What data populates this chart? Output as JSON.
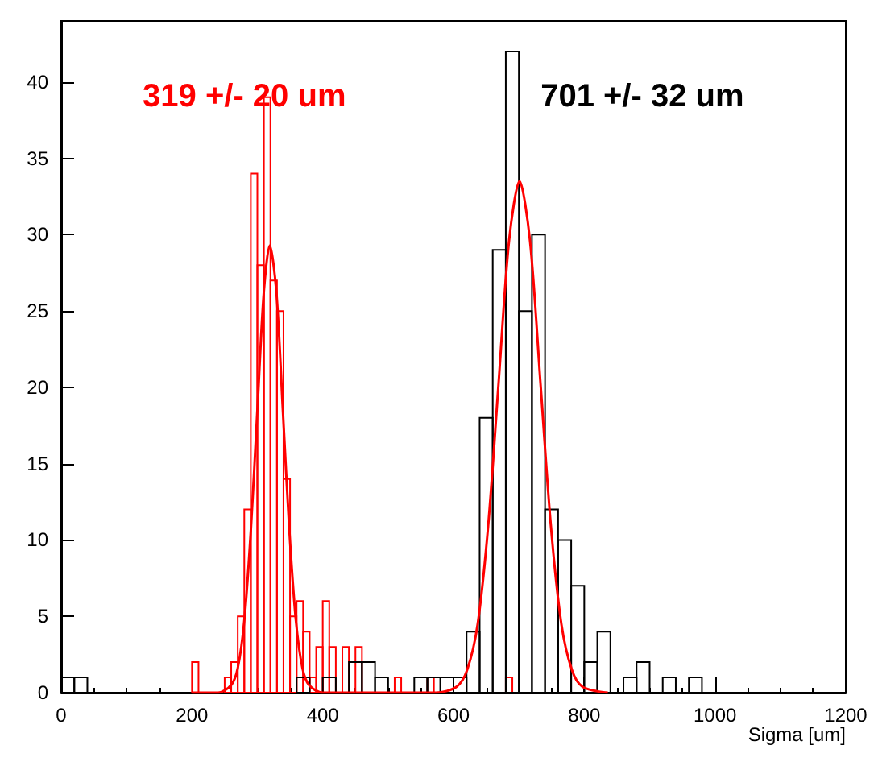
{
  "chart_data": {
    "type": "histogram",
    "xlabel": "Sigma [um]",
    "annotations": [
      "319 +/- 20 um",
      "701 +/- 32 um"
    ],
    "xlim": [
      0,
      1200
    ],
    "xticks": [
      0,
      200,
      400,
      600,
      800,
      1000,
      1200
    ],
    "ylim": [
      0,
      44
    ],
    "yticks": [
      0,
      5,
      10,
      15,
      20,
      25,
      30,
      35,
      40
    ],
    "grid": false,
    "series": [
      {
        "color": "#ff0000",
        "bins": [
          200,
          210,
          220,
          230,
          240,
          250,
          260,
          270,
          280,
          290,
          300,
          310,
          320,
          330,
          340,
          350,
          360,
          370,
          380,
          390,
          400,
          410,
          420,
          430,
          440,
          450,
          460,
          470,
          480,
          490,
          500,
          510,
          520,
          530,
          540,
          550,
          560,
          570,
          580,
          590,
          600,
          610,
          620,
          630,
          640,
          650,
          660,
          670,
          680,
          690,
          700
        ],
        "values": [
          2,
          0,
          0,
          0,
          0,
          1,
          2,
          5,
          12,
          34,
          28,
          39,
          27,
          25,
          14,
          5,
          6,
          4,
          1,
          3,
          6,
          3,
          0,
          3,
          0,
          3,
          0,
          0,
          0,
          0,
          0,
          1,
          0,
          0,
          0,
          0,
          1,
          0,
          0,
          0,
          0,
          0,
          0,
          0,
          0,
          0,
          0,
          0,
          1,
          0
        ]
      },
      {
        "color": "#000000",
        "bins": [
          0,
          20,
          40,
          60,
          80,
          100,
          120,
          140,
          160,
          180,
          200,
          220,
          240,
          260,
          280,
          300,
          320,
          340,
          360,
          380,
          400,
          420,
          440,
          460,
          480,
          500,
          520,
          540,
          560,
          580,
          600,
          620,
          640,
          660,
          680,
          700,
          720,
          740,
          760,
          780,
          800,
          820,
          840,
          860,
          880,
          900,
          920,
          940,
          960,
          980,
          1000
        ],
        "values": [
          1,
          1,
          0,
          0,
          0,
          0,
          0,
          0,
          0,
          0,
          0,
          0,
          0,
          0,
          0,
          0,
          0,
          0,
          1,
          0,
          1,
          0,
          2,
          2,
          1,
          0,
          0,
          1,
          1,
          1,
          1,
          4,
          18,
          29,
          42,
          25,
          30,
          12,
          10,
          7,
          2,
          4,
          0,
          1,
          2,
          0,
          1,
          0,
          1,
          0
        ]
      },
      {
        "type": "line",
        "color": "#ff0000",
        "x": [
          200,
          240,
          260,
          270,
          280,
          290,
          300,
          310,
          319,
          329,
          339,
          349,
          359,
          369,
          379,
          400,
          450
        ],
        "values": [
          0,
          0,
          0.5,
          1.6,
          4.7,
          10.6,
          18.5,
          26.3,
          29.3,
          26.3,
          18.5,
          10.6,
          4.7,
          1.6,
          0.5,
          0,
          0
        ]
      },
      {
        "type": "line",
        "color": "#ff0000",
        "x": [
          450,
          573,
          605,
          621,
          637,
          653,
          669,
          685,
          701,
          717,
          733,
          749,
          765,
          781,
          797,
          836
        ],
        "values": [
          0,
          0,
          0.4,
          1.5,
          4.5,
          10.9,
          20.3,
          29.6,
          33.5,
          29.6,
          20.3,
          10.9,
          4.5,
          1.5,
          0.4,
          0
        ]
      }
    ]
  }
}
